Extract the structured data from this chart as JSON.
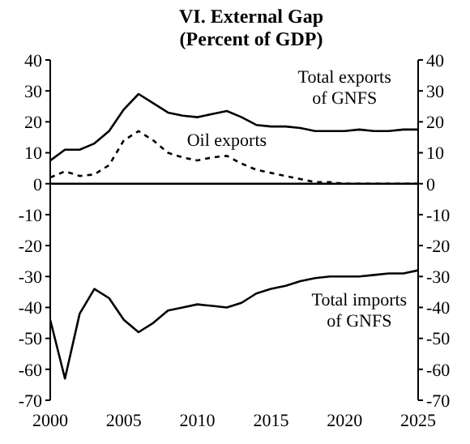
{
  "chart_data": {
    "type": "line",
    "title": "VI. External Gap",
    "subtitle": "(Percent of GDP)",
    "x": [
      2000,
      2001,
      2002,
      2003,
      2004,
      2005,
      2006,
      2007,
      2008,
      2009,
      2010,
      2011,
      2012,
      2013,
      2014,
      2015,
      2016,
      2017,
      2018,
      2019,
      2020,
      2021,
      2022,
      2023,
      2024,
      2025
    ],
    "series": [
      {
        "name": "Total exports of GNFS",
        "color": "#000000",
        "line_style": "solid",
        "values": [
          7.5,
          11,
          11,
          13,
          17,
          24,
          29,
          26,
          23,
          22,
          21.5,
          22.5,
          23.5,
          21.5,
          19,
          18.5,
          18.5,
          18,
          17,
          17,
          17,
          17.5,
          17,
          17,
          17.5,
          17.5
        ]
      },
      {
        "name": "Oil exports",
        "color": "#000000",
        "line_style": "dashed",
        "values": [
          2,
          4,
          2.5,
          3,
          6,
          14,
          17,
          14,
          10,
          8.5,
          7.5,
          8.5,
          9,
          6.5,
          4.5,
          3.5,
          2.5,
          1.5,
          0.5,
          0.5,
          0,
          0,
          0,
          0,
          0,
          0
        ]
      },
      {
        "name": "Total imports of GNFS",
        "color": "#000000",
        "line_style": "solid",
        "values": [
          -44,
          -63,
          -42,
          -34,
          -37,
          -44,
          -48,
          -45,
          -41,
          -40,
          -39,
          -39.5,
          -40,
          -38.5,
          -35.5,
          -34,
          -33,
          -31.5,
          -30.5,
          -30,
          -30,
          -30,
          -29.5,
          -29,
          -29,
          -28
        ]
      }
    ],
    "xlim": [
      2000,
      2025
    ],
    "xticks": [
      2000,
      2005,
      2010,
      2015,
      2020,
      2025
    ],
    "ylim": [
      -70,
      40
    ],
    "yticks": [
      -70,
      -60,
      -50,
      -40,
      -30,
      -20,
      -10,
      0,
      10,
      20,
      30,
      40
    ],
    "y2lim": [
      -70,
      40
    ],
    "y2ticks": [
      -70,
      -60,
      -50,
      -40,
      -30,
      -20,
      -10,
      0,
      10,
      20,
      30,
      40
    ],
    "ref_lines": [
      {
        "axis": "y",
        "value": 0,
        "color": "#000000"
      }
    ],
    "marker": "none"
  }
}
